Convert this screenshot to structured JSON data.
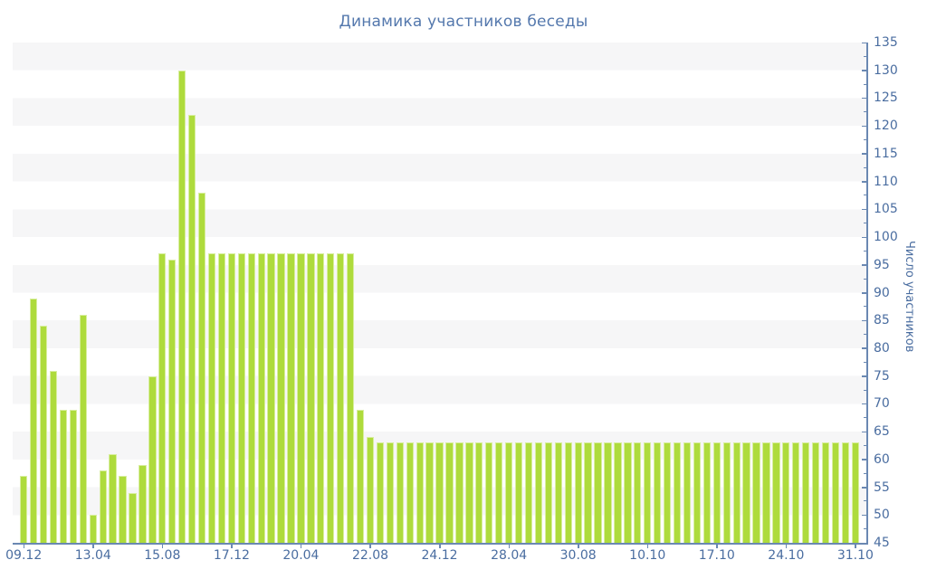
{
  "chart_data": {
    "type": "bar",
    "title": "Динамика участников беседы",
    "xlabel": "",
    "ylabel": "Число участников",
    "ylim": [
      45,
      135
    ],
    "ytick_step": 5,
    "y_tick_labels": [
      "45",
      "50",
      "55",
      "60",
      "65",
      "70",
      "75",
      "80",
      "85",
      "90",
      "95",
      "100",
      "105",
      "110",
      "115",
      "120",
      "125",
      "130",
      "135"
    ],
    "x_tick_labels": [
      "09.12",
      "13.04",
      "15.08",
      "17.12",
      "20.04",
      "22.08",
      "24.12",
      "28.04",
      "30.08",
      "10.10",
      "17.10",
      "24.10",
      "31.10"
    ],
    "label_every": 7,
    "grid": "horizontal-stripes",
    "legend": "none",
    "values": [
      57,
      89,
      84,
      76,
      69,
      69,
      86,
      50,
      58,
      61,
      57,
      54,
      59,
      75,
      97,
      96,
      130,
      122,
      108,
      97,
      97,
      97,
      97,
      97,
      97,
      97,
      97,
      97,
      97,
      97,
      97,
      97,
      97,
      97,
      69,
      64,
      63,
      63,
      63,
      63,
      63,
      63,
      63,
      63,
      63,
      63,
      63,
      63,
      63,
      63,
      63,
      63,
      63,
      63,
      63,
      63,
      63,
      63,
      63,
      63,
      63,
      63,
      63,
      63,
      63,
      63,
      63,
      63,
      63,
      63,
      63,
      63,
      63,
      63,
      63,
      63,
      63,
      63,
      63,
      63,
      63,
      63,
      63,
      63,
      63
    ],
    "colors": {
      "bar_fill": "#aedb3c",
      "bar_border": "#d8ee9f",
      "stripe": "#f6f6f7",
      "stripe_alt": "#ffffff",
      "axis": "#6a88b2",
      "tick_text": "#4a6da0",
      "title_text": "#5478ad"
    }
  }
}
